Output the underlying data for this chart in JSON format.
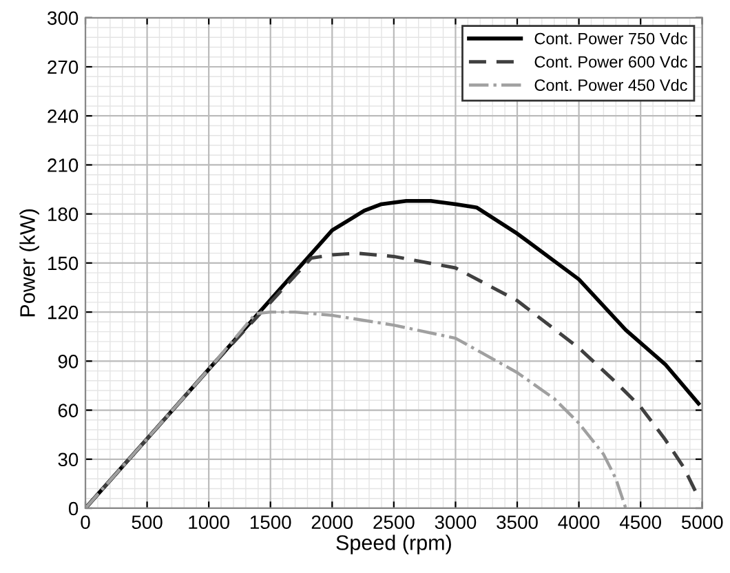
{
  "chart_data": {
    "type": "line",
    "xlabel": "Speed (rpm)",
    "ylabel": "Power (kW)",
    "xlim": [
      0,
      5000
    ],
    "ylim": [
      0,
      300
    ],
    "xticks": [
      0,
      500,
      1000,
      1500,
      2000,
      2500,
      3000,
      3500,
      4000,
      4500,
      5000
    ],
    "yticks": [
      0,
      30,
      60,
      90,
      120,
      150,
      180,
      210,
      240,
      270,
      300
    ],
    "grid": true,
    "legend": "top right",
    "series": [
      {
        "name": "Cont. Power 750 Vdc",
        "color": "#000000",
        "line_style": "solid",
        "x": [
          0,
          1000,
          2000,
          2260,
          2400,
          2600,
          2800,
          3000,
          3170,
          3500,
          4000,
          4380,
          4700,
          4970
        ],
        "values": [
          0,
          85,
          170,
          182,
          186,
          188,
          188,
          186,
          184,
          168,
          140,
          109,
          88,
          64
        ]
      },
      {
        "name": "Cont. Power 600 Vdc",
        "color": "#404040",
        "line_style": "dashed",
        "x": [
          0,
          1000,
          1830,
          2000,
          2200,
          2500,
          3000,
          3500,
          4000,
          4300,
          4500,
          4700,
          4850,
          4980
        ],
        "values": [
          0,
          85,
          153,
          155,
          156,
          154,
          147,
          127,
          98,
          77,
          62,
          42,
          25,
          5
        ]
      },
      {
        "name": "Cont. Power 450 Vdc",
        "color": "#a0a0a0",
        "line_style": "dashdot",
        "x": [
          0,
          1000,
          1380,
          1500,
          1700,
          2000,
          2500,
          3000,
          3500,
          3800,
          4000,
          4200,
          4300,
          4380
        ],
        "values": [
          0,
          85,
          119,
          120,
          120,
          118,
          112,
          104,
          83,
          67,
          52,
          33,
          18,
          0
        ]
      }
    ]
  }
}
